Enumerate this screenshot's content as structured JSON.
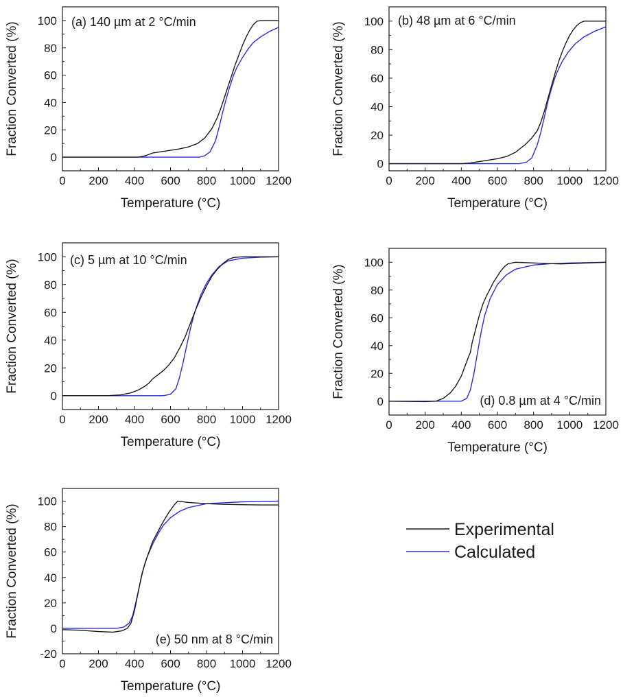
{
  "legend": {
    "entries": [
      {
        "label": "Experimental",
        "color": "#1a1a1a"
      },
      {
        "label": "Calculated",
        "color": "#2a2ae6"
      }
    ]
  },
  "chart_data": [
    {
      "type": "line",
      "panel_label": "(a) 140 µm at 2 °C/min",
      "xlabel": "Temperature (°C)",
      "ylabel": "Fraction Converted (%)",
      "xlim": [
        0,
        1200
      ],
      "ylim": [
        -10,
        110
      ],
      "xticks": [
        0,
        200,
        400,
        600,
        800,
        1000,
        1200
      ],
      "yticks": [
        0,
        20,
        40,
        60,
        80,
        100
      ],
      "grid": false,
      "legend_placement": "none",
      "series": [
        {
          "name": "Experimental",
          "color": "#1a1a1a",
          "points": [
            [
              0,
              0
            ],
            [
              420,
              0
            ],
            [
              460,
              1
            ],
            [
              500,
              3
            ],
            [
              550,
              4
            ],
            [
              600,
              5
            ],
            [
              650,
              6
            ],
            [
              700,
              7.5
            ],
            [
              750,
              10
            ],
            [
              790,
              14
            ],
            [
              830,
              21
            ],
            [
              860,
              29
            ],
            [
              880,
              36
            ],
            [
              900,
              44
            ],
            [
              920,
              52
            ],
            [
              940,
              60
            ],
            [
              960,
              68
            ],
            [
              980,
              75
            ],
            [
              1000,
              82
            ],
            [
              1020,
              88
            ],
            [
              1040,
              93
            ],
            [
              1060,
              97
            ],
            [
              1080,
              99.5
            ],
            [
              1100,
              100
            ],
            [
              1200,
              100
            ]
          ]
        },
        {
          "name": "Calculated",
          "color": "#2a2ae6",
          "points": [
            [
              0,
              0
            ],
            [
              760,
              0
            ],
            [
              790,
              1
            ],
            [
              820,
              4
            ],
            [
              850,
              12
            ],
            [
              870,
              22
            ],
            [
              890,
              33
            ],
            [
              910,
              43
            ],
            [
              930,
              52
            ],
            [
              950,
              60
            ],
            [
              970,
              66
            ],
            [
              1000,
              73
            ],
            [
              1030,
              79
            ],
            [
              1060,
              84
            ],
            [
              1100,
              88
            ],
            [
              1150,
              92
            ],
            [
              1200,
              95
            ]
          ]
        }
      ]
    },
    {
      "type": "line",
      "panel_label": "(b) 48 µm at 6 °C/min",
      "xlabel": "Temperature (°C)",
      "ylabel": "Fraction Converted (%)",
      "xlim": [
        0,
        1200
      ],
      "ylim": [
        -5,
        110
      ],
      "xticks": [
        0,
        200,
        400,
        600,
        800,
        1000,
        1200
      ],
      "yticks": [
        0,
        20,
        40,
        60,
        80,
        100
      ],
      "grid": false,
      "legend_placement": "none",
      "series": [
        {
          "name": "Experimental",
          "color": "#1a1a1a",
          "points": [
            [
              0,
              0
            ],
            [
              400,
              0
            ],
            [
              450,
              0.5
            ],
            [
              500,
              1.5
            ],
            [
              550,
              2.5
            ],
            [
              600,
              3.5
            ],
            [
              650,
              5
            ],
            [
              700,
              8
            ],
            [
              750,
              13
            ],
            [
              790,
              18
            ],
            [
              820,
              23
            ],
            [
              840,
              29
            ],
            [
              860,
              37
            ],
            [
              880,
              46
            ],
            [
              900,
              55
            ],
            [
              920,
              64
            ],
            [
              940,
              72
            ],
            [
              960,
              79
            ],
            [
              980,
              85
            ],
            [
              1000,
              90
            ],
            [
              1020,
              94
            ],
            [
              1040,
              97
            ],
            [
              1060,
              99
            ],
            [
              1080,
              100
            ],
            [
              1200,
              100
            ]
          ]
        },
        {
          "name": "Calculated",
          "color": "#2a2ae6",
          "points": [
            [
              0,
              0
            ],
            [
              720,
              0
            ],
            [
              760,
              1
            ],
            [
              790,
              4
            ],
            [
              820,
              13
            ],
            [
              840,
              22
            ],
            [
              860,
              33
            ],
            [
              880,
              44
            ],
            [
              900,
              53
            ],
            [
              920,
              61
            ],
            [
              940,
              67
            ],
            [
              960,
              72
            ],
            [
              990,
              78
            ],
            [
              1030,
              84
            ],
            [
              1080,
              89
            ],
            [
              1140,
              93
            ],
            [
              1200,
              96
            ]
          ]
        }
      ]
    },
    {
      "type": "line",
      "panel_label": "(c) 5 µm at 10 °C/min",
      "xlabel": "Temperature (°C)",
      "ylabel": "Fraction Converted (%)",
      "xlim": [
        0,
        1200
      ],
      "ylim": [
        -10,
        110
      ],
      "xticks": [
        0,
        200,
        400,
        600,
        800,
        1000,
        1200
      ],
      "yticks": [
        0,
        20,
        40,
        60,
        80,
        100
      ],
      "grid": false,
      "legend_placement": "none",
      "series": [
        {
          "name": "Experimental",
          "color": "#1a1a1a",
          "points": [
            [
              0,
              0
            ],
            [
              250,
              0
            ],
            [
              320,
              0.5
            ],
            [
              380,
              2
            ],
            [
              420,
              4
            ],
            [
              460,
              7
            ],
            [
              480,
              9
            ],
            [
              500,
              12
            ],
            [
              530,
              15
            ],
            [
              560,
              18
            ],
            [
              590,
              22
            ],
            [
              620,
              27
            ],
            [
              650,
              34
            ],
            [
              680,
              42
            ],
            [
              710,
              52
            ],
            [
              740,
              62
            ],
            [
              770,
              71
            ],
            [
              800,
              79
            ],
            [
              830,
              86
            ],
            [
              860,
              91
            ],
            [
              890,
              95
            ],
            [
              920,
              98
            ],
            [
              950,
              99.5
            ],
            [
              1000,
              100
            ],
            [
              1200,
              100
            ]
          ]
        },
        {
          "name": "Calculated",
          "color": "#2a2ae6",
          "points": [
            [
              0,
              0
            ],
            [
              560,
              0
            ],
            [
              600,
              1
            ],
            [
              630,
              5
            ],
            [
              650,
              13
            ],
            [
              670,
              24
            ],
            [
              690,
              36
            ],
            [
              710,
              48
            ],
            [
              730,
              58
            ],
            [
              750,
              66
            ],
            [
              770,
              73
            ],
            [
              800,
              81
            ],
            [
              830,
              87
            ],
            [
              870,
              93
            ],
            [
              920,
              97
            ],
            [
              1000,
              99
            ],
            [
              1100,
              99.7
            ],
            [
              1200,
              100
            ]
          ]
        }
      ]
    },
    {
      "type": "line",
      "panel_label": "(d) 0.8 µm at 4 °C/min",
      "xlabel": "Temperature (°C)",
      "ylabel": "Fraction Converted (%)",
      "xlim": [
        0,
        1200
      ],
      "ylim": [
        -10,
        110
      ],
      "xticks": [
        0,
        200,
        400,
        600,
        800,
        1000,
        1200
      ],
      "yticks": [
        0,
        20,
        40,
        60,
        80,
        100
      ],
      "grid": false,
      "legend_placement": "none",
      "series": [
        {
          "name": "Experimental",
          "color": "#1a1a1a",
          "points": [
            [
              0,
              0
            ],
            [
              200,
              -0.3
            ],
            [
              260,
              0
            ],
            [
              300,
              2
            ],
            [
              340,
              6
            ],
            [
              370,
              11
            ],
            [
              400,
              18
            ],
            [
              420,
              25
            ],
            [
              440,
              32
            ],
            [
              450,
              35
            ],
            [
              460,
              42
            ],
            [
              480,
              52
            ],
            [
              500,
              62
            ],
            [
              520,
              70
            ],
            [
              540,
              76
            ],
            [
              560,
              81
            ],
            [
              580,
              86
            ],
            [
              600,
              90
            ],
            [
              620,
              94
            ],
            [
              640,
              97
            ],
            [
              660,
              99
            ],
            [
              700,
              100
            ],
            [
              800,
              99.5
            ],
            [
              900,
              99
            ],
            [
              950,
              98.8
            ],
            [
              1000,
              99
            ],
            [
              1200,
              100
            ]
          ]
        },
        {
          "name": "Calculated",
          "color": "#2a2ae6",
          "points": [
            [
              0,
              0
            ],
            [
              400,
              0
            ],
            [
              430,
              2
            ],
            [
              450,
              8
            ],
            [
              470,
              20
            ],
            [
              490,
              35
            ],
            [
              510,
              50
            ],
            [
              530,
              62
            ],
            [
              560,
              74
            ],
            [
              600,
              84
            ],
            [
              650,
              91
            ],
            [
              700,
              95
            ],
            [
              800,
              98
            ],
            [
              900,
              99
            ],
            [
              1000,
              99.5
            ],
            [
              1200,
              100
            ]
          ]
        }
      ]
    },
    {
      "type": "line",
      "panel_label": "(e) 50 nm at 8 °C/min",
      "xlabel": "Temperature (°C)",
      "ylabel": "Fraction Converted (%)",
      "xlim": [
        0,
        1200
      ],
      "ylim": [
        -20,
        110
      ],
      "xticks": [
        0,
        200,
        400,
        600,
        800,
        1000,
        1200
      ],
      "yticks": [
        -20,
        0,
        20,
        40,
        60,
        80,
        100
      ],
      "grid": false,
      "legend_placement": "none",
      "series": [
        {
          "name": "Experimental",
          "color": "#1a1a1a",
          "points": [
            [
              0,
              -1
            ],
            [
              100,
              -1.5
            ],
            [
              200,
              -2.5
            ],
            [
              280,
              -3
            ],
            [
              330,
              -2
            ],
            [
              360,
              0
            ],
            [
              380,
              4
            ],
            [
              400,
              14
            ],
            [
              420,
              28
            ],
            [
              440,
              42
            ],
            [
              460,
              52
            ],
            [
              480,
              60
            ],
            [
              500,
              68
            ],
            [
              530,
              76
            ],
            [
              560,
              84
            ],
            [
              590,
              91
            ],
            [
              620,
              97
            ],
            [
              640,
              100
            ],
            [
              700,
              99
            ],
            [
              800,
              98
            ],
            [
              900,
              97.5
            ],
            [
              1000,
              97.2
            ],
            [
              1100,
              97
            ],
            [
              1200,
              97
            ]
          ]
        },
        {
          "name": "Calculated",
          "color": "#2a2ae6",
          "points": [
            [
              0,
              0
            ],
            [
              300,
              0
            ],
            [
              340,
              1
            ],
            [
              370,
              4
            ],
            [
              390,
              10
            ],
            [
              410,
              22
            ],
            [
              430,
              35
            ],
            [
              450,
              47
            ],
            [
              470,
              56
            ],
            [
              500,
              66
            ],
            [
              530,
              74
            ],
            [
              560,
              81
            ],
            [
              600,
              87
            ],
            [
              650,
              92
            ],
            [
              700,
              95
            ],
            [
              800,
              98
            ],
            [
              1000,
              99.5
            ],
            [
              1200,
              100
            ]
          ]
        }
      ]
    }
  ]
}
